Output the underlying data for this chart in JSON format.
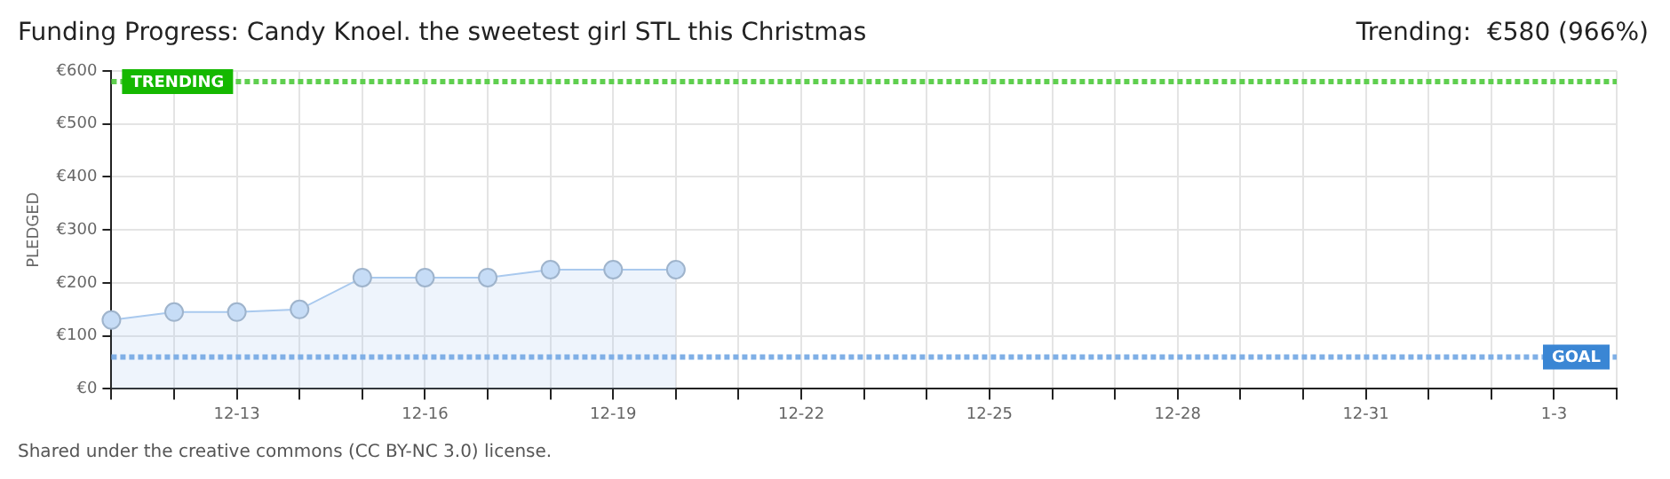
{
  "chart_data": {
    "type": "area",
    "title": "Funding Progress: Candy Knoel. the sweetest girl STL this Christmas",
    "subtitle": "Trending:  €580 (966%)",
    "ylabel": "PLEDGED",
    "categories": [
      null,
      null,
      "12-13",
      null,
      null,
      "12-16",
      null,
      null,
      "12-19",
      null,
      null,
      "12-22",
      null,
      null,
      "12-25",
      null,
      null,
      "12-28",
      null,
      null,
      "12-31",
      null,
      null,
      "1-3",
      null
    ],
    "series": [
      {
        "color": "#a9c9ee",
        "values": [
          130,
          145,
          145,
          150,
          210,
          210,
          210,
          225,
          225,
          225,
          null,
          null,
          null,
          null,
          null,
          null,
          null,
          null,
          null,
          null,
          null,
          null,
          null,
          null,
          null
        ]
      }
    ],
    "ylim": [
      0,
      600
    ],
    "yticks": [
      {
        "value": 0,
        "label": "€0"
      },
      {
        "value": 100,
        "label": "€100"
      },
      {
        "value": 200,
        "label": "€200"
      },
      {
        "value": 300,
        "label": "€300"
      },
      {
        "value": 400,
        "label": "€400"
      },
      {
        "value": 500,
        "label": "€500"
      },
      {
        "value": 600,
        "label": "€600"
      }
    ],
    "ref_lines": [
      {
        "axis": "y",
        "value": 580,
        "label": "TRENDING",
        "color": "#5fcf4f",
        "line_style": "dotted"
      },
      {
        "axis": "y",
        "value": 60,
        "label": "GOAL",
        "color": "#7fafe6",
        "line_style": "dotted"
      }
    ],
    "grid": true,
    "marker": "circle",
    "annotations": [
      "Shared under the creative commons (CC BY-NC 3.0) license."
    ]
  }
}
